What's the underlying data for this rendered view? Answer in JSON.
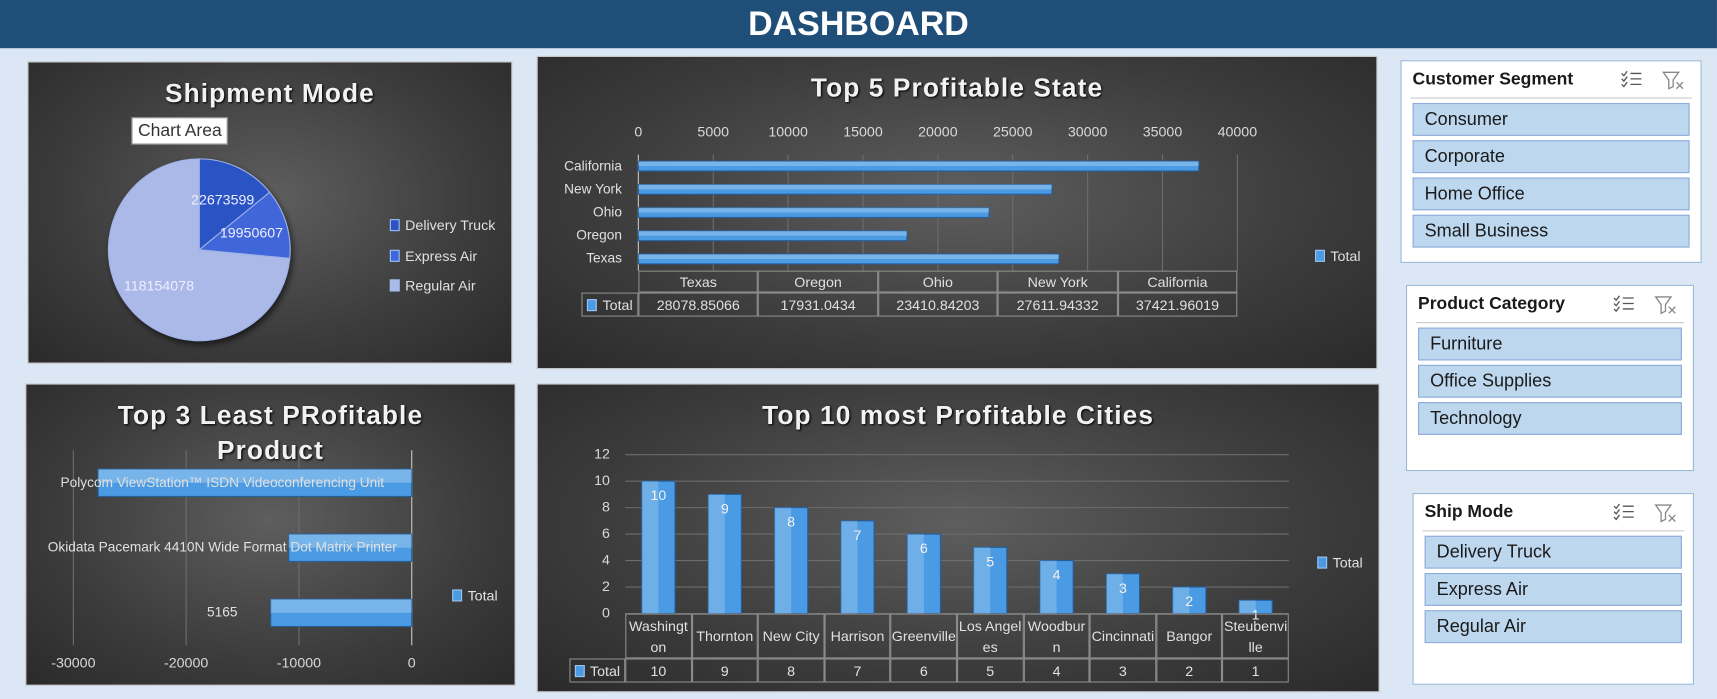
{
  "header": {
    "title": "DASHBOARD"
  },
  "tooltip": "Chart Area",
  "chart_data": [
    {
      "type": "pie",
      "title": "Shipment Mode",
      "categories": [
        "Delivery Truck",
        "Express Air",
        "Regular Air"
      ],
      "values": [
        22673599,
        19950607,
        118154078
      ],
      "colors": [
        "#2c52c4",
        "#3f66da",
        "#aab9e8"
      ],
      "legend": "right"
    },
    {
      "type": "hbar",
      "title": "Top 5 Profitable State",
      "categories": [
        "Texas",
        "Oregon",
        "Ohio",
        "New York",
        "California"
      ],
      "series": [
        {
          "name": "Total",
          "color": "#4a9be3",
          "values": [
            28078.85066,
            17931.0434,
            23410.84203,
            27611.94332,
            37421.96019
          ]
        }
      ],
      "xlim": [
        0,
        40000
      ],
      "xticks": [
        0,
        5000,
        10000,
        15000,
        20000,
        25000,
        30000,
        35000,
        40000
      ],
      "x_axis_position": "top",
      "grid": true,
      "data_table": true,
      "legend": "right"
    },
    {
      "type": "hbar",
      "title": "Top 3 Least PRofitable Product",
      "categories": [
        "5165",
        "Okidata Pacemark 4410N Wide Format Dot Matrix Printer",
        "Polycom ViewStation™ ISDN Videoconferencing Unit"
      ],
      "series": [
        {
          "name": "Total",
          "color": "#4a9be3",
          "values": [
            -12500,
            -10900,
            -27800
          ]
        }
      ],
      "xlim": [
        -30000,
        0
      ],
      "xticks": [
        -30000,
        -20000,
        -10000,
        0
      ],
      "x_axis_position": "bottom",
      "grid": true,
      "data_table": false,
      "legend": "right"
    },
    {
      "type": "bar",
      "title": "Top 10 most Profitable Cities",
      "categories": [
        "Washington",
        "Thornton",
        "New City",
        "Harrison",
        "Greenville",
        "Los Angeles",
        "Woodburn",
        "Cincinnati",
        "Bangor",
        "Steubenville"
      ],
      "series": [
        {
          "name": "Total",
          "color": "#4a9be3",
          "values": [
            10,
            9,
            8,
            7,
            6,
            5,
            4,
            3,
            2,
            1
          ]
        }
      ],
      "ylim": [
        0,
        12
      ],
      "yticks": [
        0,
        2,
        4,
        6,
        8,
        10,
        12
      ],
      "grid": true,
      "data_labels": true,
      "data_table": true,
      "legend": "right"
    }
  ],
  "slicers": [
    {
      "title": "Customer Segment",
      "items": [
        "Consumer",
        "Corporate",
        "Home Office",
        "Small Business"
      ]
    },
    {
      "title": "Product Category",
      "items": [
        "Furniture",
        "Office Supplies",
        "Technology"
      ]
    },
    {
      "title": "Ship Mode",
      "items": [
        "Delivery Truck",
        "Express Air",
        "Regular Air"
      ]
    }
  ]
}
